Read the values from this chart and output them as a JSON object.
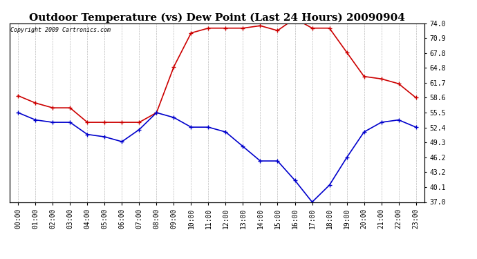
{
  "title": "Outdoor Temperature (vs) Dew Point (Last 24 Hours) 20090904",
  "copyright_text": "Copyright 2009 Cartronics.com",
  "hours": [
    "00:00",
    "01:00",
    "02:00",
    "03:00",
    "04:00",
    "05:00",
    "06:00",
    "07:00",
    "08:00",
    "09:00",
    "10:00",
    "11:00",
    "12:00",
    "13:00",
    "14:00",
    "15:00",
    "16:00",
    "17:00",
    "18:00",
    "19:00",
    "20:00",
    "21:00",
    "22:00",
    "23:00"
  ],
  "temp": [
    59.0,
    57.5,
    56.5,
    56.5,
    53.5,
    53.5,
    53.5,
    53.5,
    55.5,
    65.0,
    72.0,
    73.0,
    73.0,
    73.0,
    73.5,
    72.5,
    75.0,
    73.0,
    73.0,
    68.0,
    63.0,
    62.5,
    61.5,
    58.6
  ],
  "dew": [
    55.5,
    54.0,
    53.5,
    53.5,
    51.0,
    50.5,
    49.5,
    52.0,
    55.5,
    54.5,
    52.5,
    52.5,
    51.5,
    48.5,
    45.5,
    45.5,
    41.5,
    37.0,
    40.5,
    46.2,
    51.5,
    53.5,
    54.0,
    52.5
  ],
  "temp_color": "#cc0000",
  "dew_color": "#0000cc",
  "bg_color": "#ffffff",
  "plot_bg_color": "#ffffff",
  "grid_color": "#aaaaaa",
  "yticks": [
    37.0,
    40.1,
    43.2,
    46.2,
    49.3,
    52.4,
    55.5,
    58.6,
    61.7,
    64.8,
    67.8,
    70.9,
    74.0
  ],
  "ylim": [
    37.0,
    74.0
  ],
  "title_fontsize": 11,
  "tick_fontsize": 7,
  "copyright_fontsize": 6,
  "marker": "+",
  "marker_size": 4,
  "line_width": 1.2
}
